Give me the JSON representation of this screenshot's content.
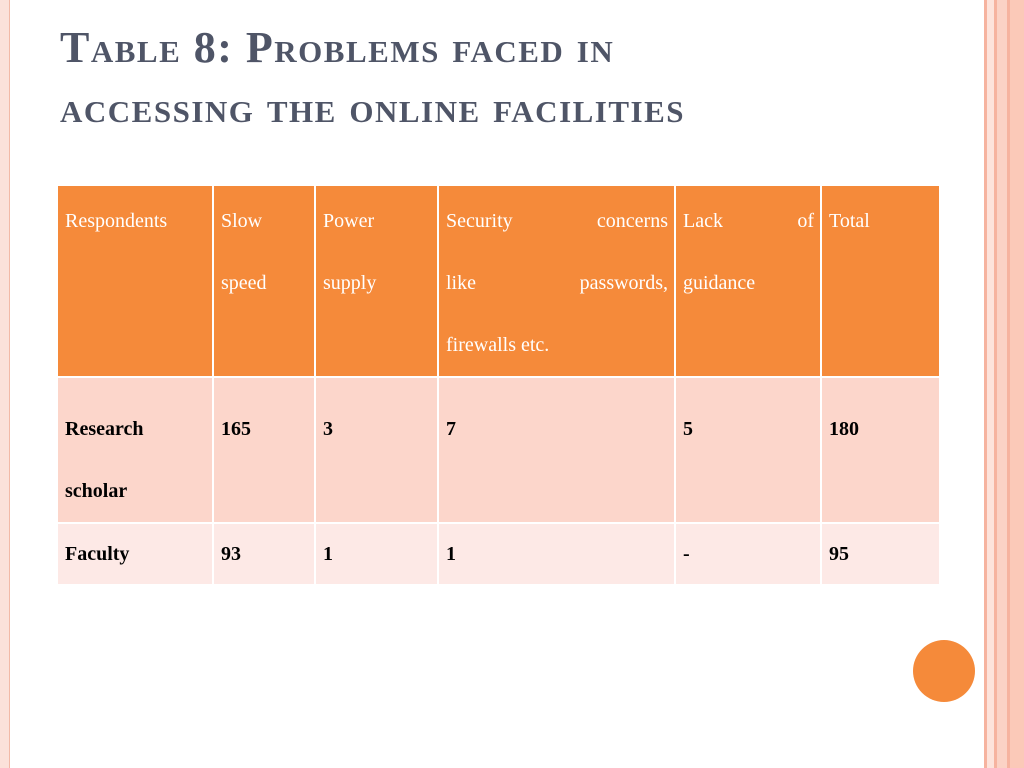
{
  "slide": {
    "title_line1": "Table 8: Problems faced in",
    "title_line2": "accessing the online facilities"
  },
  "table": {
    "headers": [
      {
        "lines": [
          "Respondents"
        ]
      },
      {
        "lines": [
          "Slow",
          "speed"
        ]
      },
      {
        "lines": [
          "Power",
          "supply"
        ]
      },
      {
        "lines": [
          "Security concerns",
          "like passwords,",
          "firewalls etc."
        ]
      },
      {
        "lines": [
          "Lack of",
          "guidance"
        ]
      },
      {
        "lines": [
          "Total"
        ]
      }
    ],
    "rows": [
      {
        "respondent": [
          "Research",
          "scholar"
        ],
        "slow_speed": "165",
        "power_supply": "3",
        "security": "7",
        "lack_of_guidance": "5",
        "total": "180"
      },
      {
        "respondent": [
          "Faculty"
        ],
        "slow_speed": "93",
        "power_supply": "1",
        "security": "1",
        "lack_of_guidance": "-",
        "total": "95"
      }
    ]
  },
  "colors": {
    "header_bg": "#f58a3a",
    "row1_bg": "#fcd6cb",
    "row2_bg": "#fde9e6",
    "title": "#4f5567",
    "accent": "#f58a3a"
  }
}
